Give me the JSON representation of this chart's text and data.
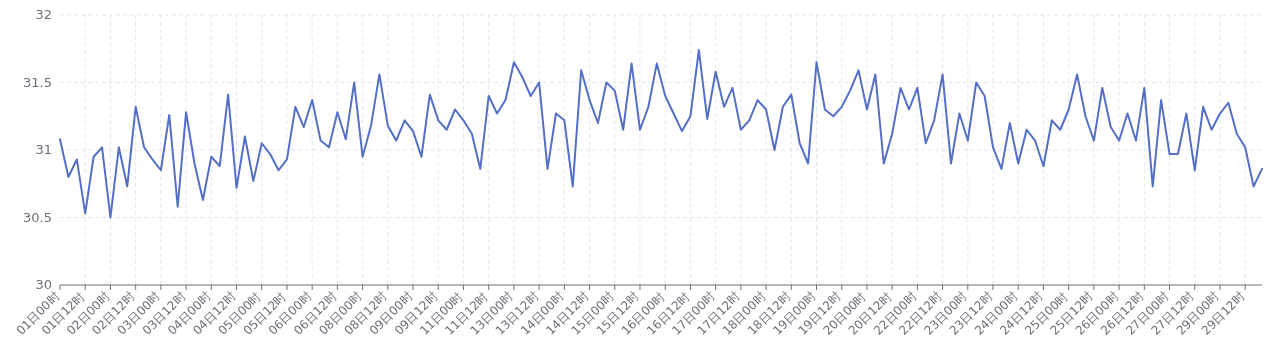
{
  "chart_data": {
    "type": "line",
    "categories": [
      "01日00时",
      null,
      null,
      "01日12时",
      null,
      null,
      "02日00时",
      null,
      null,
      "02日12时",
      null,
      null,
      "03日00时",
      null,
      null,
      "03日12时",
      null,
      null,
      "04日00时",
      null,
      null,
      "04日12时",
      null,
      null,
      "05日00时",
      null,
      null,
      "05日12时",
      null,
      null,
      "06日00时",
      null,
      null,
      "06日12时",
      null,
      null,
      "08日00时",
      null,
      null,
      "08日12时",
      null,
      null,
      "09日00时",
      null,
      null,
      "09日12时",
      null,
      null,
      "11日00时",
      null,
      null,
      "11日12时",
      null,
      null,
      "13日00时",
      null,
      null,
      "13日12时",
      null,
      null,
      "14日00时",
      null,
      null,
      "14日12时",
      null,
      null,
      "15日00时",
      null,
      null,
      "15日12时",
      null,
      null,
      "16日00时",
      null,
      null,
      "16日12时",
      null,
      null,
      "17日00时",
      null,
      null,
      "17日12时",
      null,
      null,
      "18日00时",
      null,
      null,
      "18日12时",
      null,
      null,
      "19日00时",
      null,
      null,
      "19日12时",
      null,
      null,
      "20日00时",
      null,
      null,
      "20日12时",
      null,
      null,
      "22日00时",
      null,
      null,
      "22日12时",
      null,
      null,
      "23日00时",
      null,
      null,
      "23日12时",
      null,
      null,
      "24日00时",
      null,
      null,
      "24日12时",
      null,
      null,
      "25日00时",
      null,
      null,
      "25日12时",
      null,
      null,
      "26日00时",
      null,
      null,
      "26日12时",
      null,
      null,
      "27日00时",
      null,
      null,
      "27日12时",
      null,
      null,
      "29日00时",
      null,
      null,
      "29日12时",
      null,
      null
    ],
    "series": [
      {
        "color": "#5470c6",
        "values": [
          31.08,
          30.8,
          30.93,
          30.53,
          30.95,
          31.02,
          30.5,
          31.02,
          30.73,
          31.32,
          31.02,
          30.93,
          30.85,
          31.26,
          30.58,
          31.28,
          30.9,
          30.63,
          30.95,
          30.88,
          31.41,
          30.72,
          31.1,
          30.77,
          31.05,
          30.97,
          30.85,
          30.93,
          31.32,
          31.17,
          31.37,
          31.07,
          31.02,
          31.28,
          31.08,
          31.5,
          30.95,
          31.18,
          31.56,
          31.18,
          31.07,
          31.22,
          31.14,
          30.95,
          31.41,
          31.22,
          31.15,
          31.3,
          31.22,
          31.12,
          30.86,
          31.4,
          31.27,
          31.37,
          31.65,
          31.54,
          31.4,
          31.5,
          30.86,
          31.27,
          31.22,
          30.73,
          31.59,
          31.37,
          31.2,
          31.5,
          31.44,
          31.15,
          31.64,
          31.15,
          31.32,
          31.64,
          31.4,
          31.27,
          31.14,
          31.25,
          31.74,
          31.23,
          31.58,
          31.32,
          31.46,
          31.15,
          31.22,
          31.37,
          31.3,
          31.0,
          31.32,
          31.41,
          31.05,
          30.9,
          31.65,
          31.3,
          31.25,
          31.32,
          31.44,
          31.59,
          31.3,
          31.56,
          30.9,
          31.12,
          31.46,
          31.3,
          31.46,
          31.05,
          31.22,
          31.56,
          30.9,
          31.27,
          31.07,
          31.5,
          31.4,
          31.02,
          30.86,
          31.2,
          30.9,
          31.15,
          31.07,
          30.88,
          31.22,
          31.15,
          31.3,
          31.56,
          31.25,
          31.07,
          31.46,
          31.17,
          31.07,
          31.27,
          31.07,
          31.46,
          30.73,
          31.37,
          30.97,
          30.97,
          31.27,
          30.85,
          31.32,
          31.15,
          31.27,
          31.35,
          31.12,
          31.02,
          30.73,
          30.86
        ]
      }
    ],
    "ylim": [
      30,
      32
    ],
    "yticks": [
      30,
      30.5,
      31,
      31.5,
      32
    ],
    "grid": true
  }
}
